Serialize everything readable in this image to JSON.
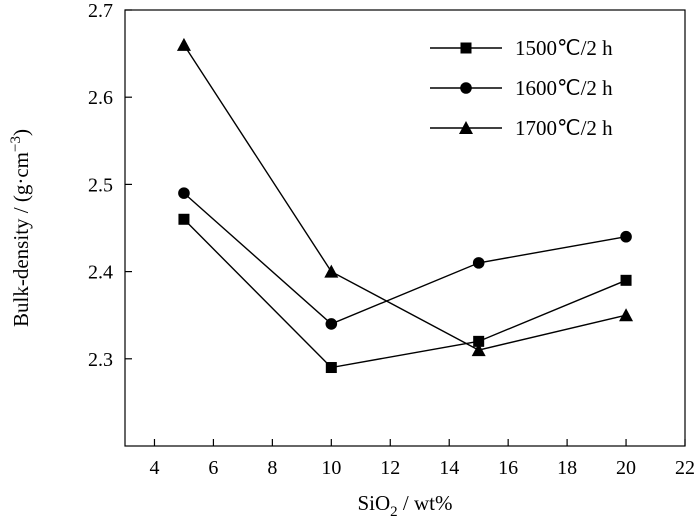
{
  "chart_data": {
    "type": "line",
    "title": "",
    "xlabel": {
      "pre": "SiO",
      "sub": "2",
      "post": " / wt%"
    },
    "ylabel": {
      "pre": "Bulk-density / (g·cm",
      "sup": "−3",
      "post": ")"
    },
    "xlim": [
      3,
      22
    ],
    "ylim": [
      2.2,
      2.7
    ],
    "x_ticks": [
      4,
      6,
      8,
      10,
      12,
      14,
      16,
      18,
      20,
      22
    ],
    "y_ticks": [
      2.3,
      2.4,
      2.5,
      2.6,
      2.7
    ],
    "legend_position": "top-right",
    "grid": false,
    "x": [
      5,
      10,
      15,
      20
    ],
    "series": [
      {
        "name": "1500℃/2 h",
        "marker": "square",
        "values": [
          2.46,
          2.29,
          2.32,
          2.39
        ]
      },
      {
        "name": "1600℃/2 h",
        "marker": "circle",
        "values": [
          2.49,
          2.34,
          2.41,
          2.44
        ]
      },
      {
        "name": "1700℃/2 h",
        "marker": "triangle",
        "values": [
          2.66,
          2.4,
          2.31,
          2.35
        ]
      }
    ]
  }
}
